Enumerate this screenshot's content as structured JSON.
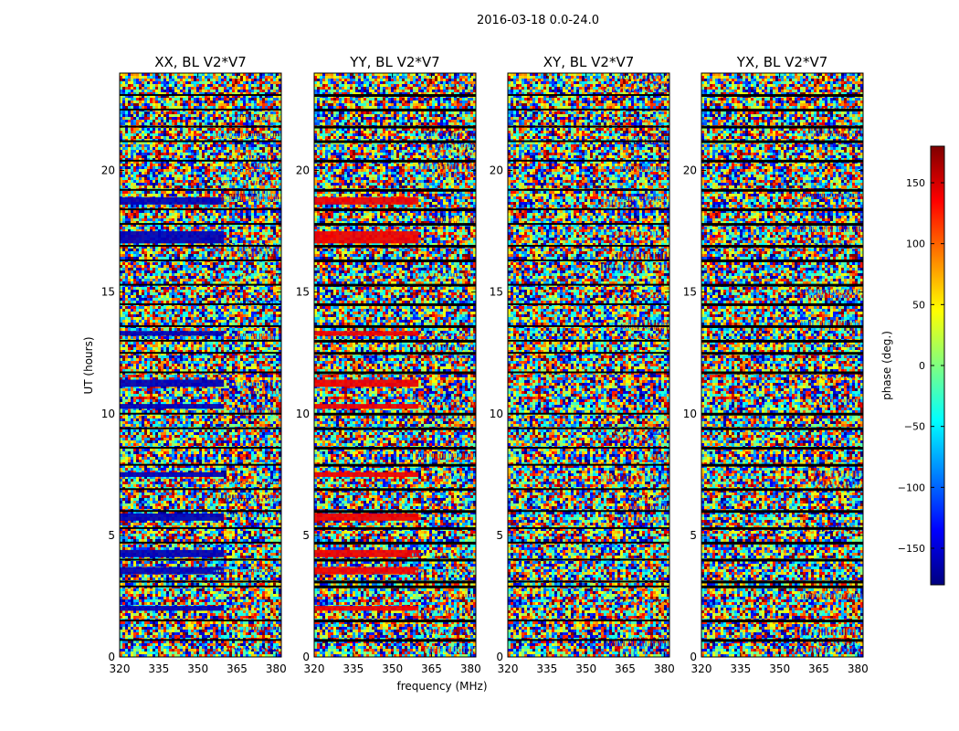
{
  "chart_data": {
    "type": "heatmap",
    "suptitle": "2016-03-18 0.0-24.0",
    "xlabel": "frequency (MHz)",
    "ylabel": "UT (hours)",
    "xlim": [
      320,
      382
    ],
    "ylim": [
      0,
      24
    ],
    "xticks": [
      320,
      335,
      350,
      365,
      380
    ],
    "yticks": [
      0,
      5,
      10,
      15,
      20
    ],
    "panels": [
      {
        "title": "XX, BL V2*V7",
        "steady_band": {
          "freq_max": 360,
          "phase": -160,
          "ut_ranges": [
            [
              1.9,
              2.1
            ],
            [
              3.4,
              3.7
            ],
            [
              4.1,
              4.4
            ],
            [
              5.6,
              5.9
            ],
            [
              7.4,
              7.6
            ],
            [
              10.2,
              10.4
            ],
            [
              11.1,
              11.4
            ],
            [
              13.2,
              13.4
            ],
            [
              17.0,
              17.5
            ],
            [
              18.6,
              18.9
            ]
          ]
        }
      },
      {
        "title": "YY, BL V2*V7",
        "steady_band": {
          "freq_max": 360,
          "phase": 140,
          "ut_ranges": [
            [
              1.9,
              2.1
            ],
            [
              3.4,
              3.7
            ],
            [
              4.1,
              4.4
            ],
            [
              5.6,
              5.9
            ],
            [
              7.4,
              7.6
            ],
            [
              10.2,
              10.4
            ],
            [
              11.1,
              11.4
            ],
            [
              13.2,
              13.4
            ],
            [
              17.0,
              17.5
            ],
            [
              18.6,
              18.9
            ]
          ]
        }
      },
      {
        "title": "XY, BL V2*V7",
        "steady_band": null
      },
      {
        "title": "YX, BL V2*V7",
        "steady_band": null
      }
    ],
    "colorbar": {
      "label": "phase (deg.)",
      "range": [
        -180,
        180
      ],
      "ticks": [
        -150,
        -100,
        -50,
        0,
        50,
        100,
        150
      ],
      "tick_labels": [
        "−150",
        "−100",
        "−50",
        "0",
        "50",
        "100",
        "150"
      ],
      "colormap": "jet"
    },
    "flagged_ut": [
      0.7,
      1.5,
      2.9,
      3.1,
      4.0,
      4.7,
      5.3,
      6.0,
      6.9,
      7.9,
      8.6,
      9.4,
      10.0,
      11.7,
      12.5,
      13.0,
      13.6,
      14.5,
      15.3,
      16.3,
      16.9,
      17.8,
      18.4,
      19.2,
      20.4,
      21.2,
      21.8,
      22.5,
      23.1
    ]
  }
}
